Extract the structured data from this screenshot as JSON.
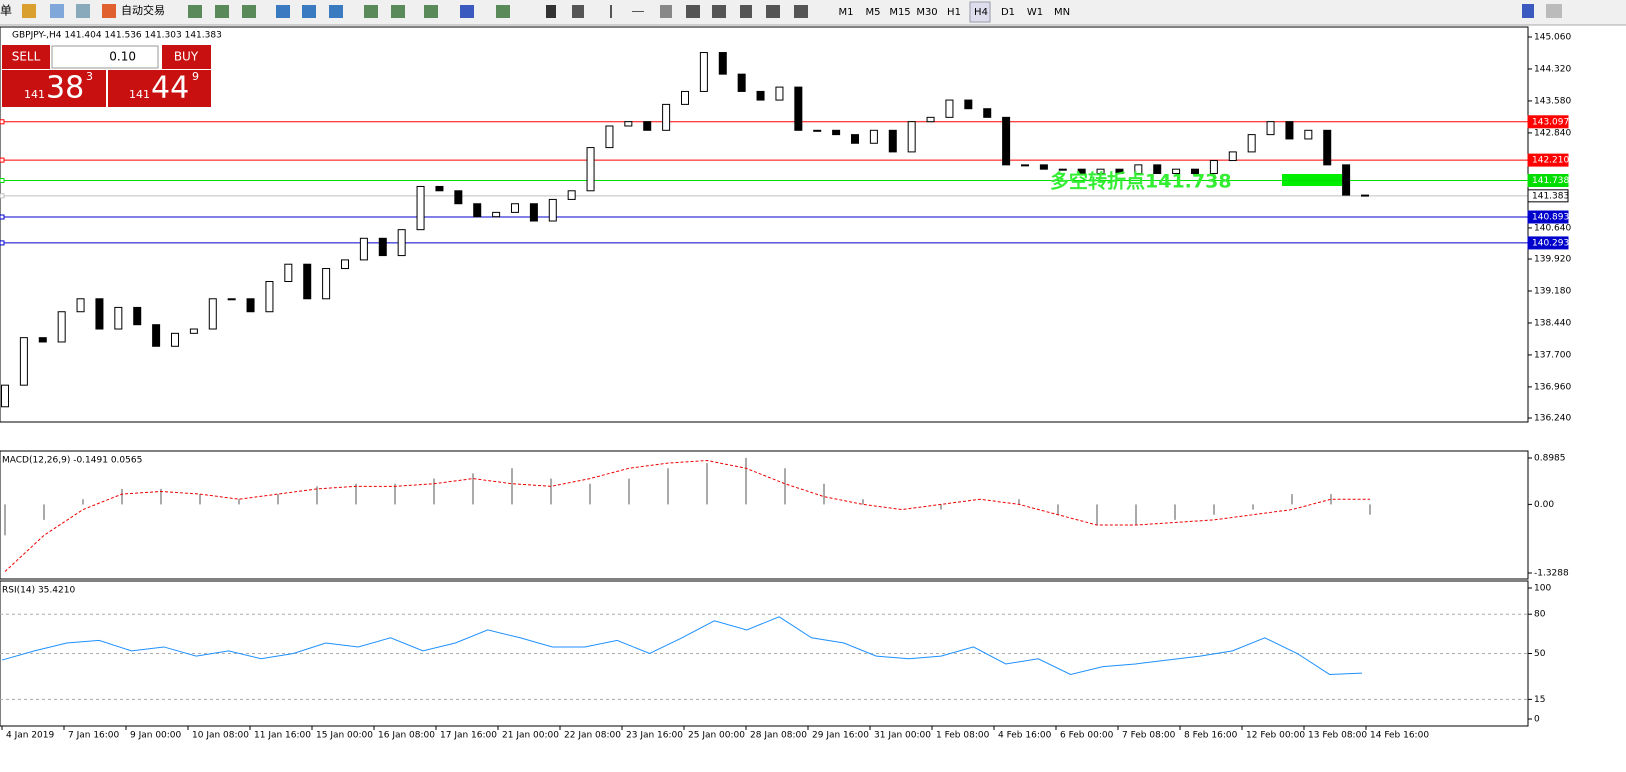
{
  "toolbar": {
    "left_label": "单",
    "auto_trade": "自动交易",
    "timeframes": [
      "M1",
      "M5",
      "M15",
      "M30",
      "H1",
      "H4",
      "D1",
      "W1",
      "MN"
    ]
  },
  "trade_panel": {
    "sell": "SELL",
    "buy": "BUY",
    "lots": "0.10",
    "sell_price": {
      "big": "141",
      "pips": "38",
      "frac": "3"
    },
    "buy_price": {
      "big": "141",
      "pips": "44",
      "frac": "9"
    }
  },
  "chart_data": [
    {
      "type": "candlestick",
      "title": "GBPJPY-,H4  141.404 141.536 141.303 141.383",
      "open": [
        136.5,
        137.0,
        138.1,
        138.0,
        138.7,
        139.0,
        138.3,
        138.8,
        138.4,
        137.9,
        138.2,
        138.3,
        139.0,
        139.0,
        138.7,
        139.4,
        139.8,
        139.0,
        139.7,
        139.9,
        140.4,
        140.0,
        140.6,
        141.6,
        141.5,
        141.2,
        140.9,
        141.0,
        141.2,
        140.8,
        141.3,
        141.5,
        142.5,
        143.0,
        143.1,
        142.9,
        143.5,
        143.8,
        144.7,
        144.2,
        143.8,
        143.6,
        143.9,
        142.9,
        142.9,
        142.8,
        142.6,
        142.9,
        142.4,
        143.1,
        143.2,
        143.6,
        143.4,
        143.2,
        142.1,
        142.1,
        142.0,
        142.0,
        141.9,
        142.0,
        141.9,
        142.1,
        141.9,
        142.0,
        141.9,
        142.2,
        142.4,
        142.8,
        143.1,
        142.7,
        142.9,
        142.1,
        141.4
      ],
      "close": [
        137.0,
        138.1,
        138.0,
        138.7,
        139.0,
        138.3,
        138.8,
        138.4,
        137.9,
        138.2,
        138.3,
        139.0,
        139.0,
        138.7,
        139.4,
        139.8,
        139.0,
        139.7,
        139.9,
        140.4,
        140.0,
        140.6,
        141.6,
        141.5,
        141.2,
        140.9,
        141.0,
        141.2,
        140.8,
        141.3,
        141.5,
        142.5,
        143.0,
        143.1,
        142.9,
        143.5,
        143.8,
        144.7,
        144.2,
        143.8,
        143.6,
        143.9,
        142.9,
        142.9,
        142.8,
        142.6,
        142.9,
        142.4,
        143.1,
        143.2,
        143.6,
        143.4,
        143.2,
        142.1,
        142.1,
        142.0,
        142.0,
        141.9,
        142.0,
        141.9,
        142.1,
        141.9,
        142.0,
        141.9,
        142.2,
        142.4,
        142.8,
        143.1,
        142.7,
        142.9,
        142.1,
        141.4,
        141.383
      ],
      "ylim": [
        136.24,
        145.06
      ],
      "yticks": [
        {
          "value": 145.06,
          "label": "145.060"
        },
        {
          "value": 144.32,
          "label": "144.320"
        },
        {
          "value": 143.58,
          "label": "143.580"
        },
        {
          "value": 142.84,
          "label": "142.840"
        },
        {
          "value": 140.64,
          "label": "140.640"
        },
        {
          "value": 139.92,
          "label": "139.920"
        },
        {
          "value": 139.18,
          "label": "139.180"
        },
        {
          "value": 138.44,
          "label": "138.440"
        },
        {
          "value": 137.7,
          "label": "137.700"
        },
        {
          "value": 136.96,
          "label": "136.960"
        },
        {
          "value": 136.24,
          "label": "136.240"
        }
      ],
      "levels": [
        {
          "value": 143.097,
          "label": "143.097",
          "color": "#ff0000"
        },
        {
          "value": 142.21,
          "label": "142.210",
          "color": "#ff0000"
        },
        {
          "value": 141.738,
          "label": "141.738",
          "color": "#00dd00"
        },
        {
          "value": 141.383,
          "label": "141.383",
          "color": "#c0c0c0"
        },
        {
          "value": 140.893,
          "label": "140.893",
          "color": "#0000cc"
        },
        {
          "value": 140.293,
          "label": "140.293",
          "color": "#0000cc"
        }
      ],
      "annotation": "多空转折点141.738"
    },
    {
      "type": "macd",
      "title": "MACD(12,26,9) -0.1491 0.0565",
      "values": [
        -0.6,
        -0.3,
        0.1,
        0.3,
        0.3,
        0.2,
        0.1,
        0.2,
        0.35,
        0.4,
        0.4,
        0.5,
        0.6,
        0.7,
        0.5,
        0.4,
        0.5,
        0.7,
        0.8,
        0.9,
        0.7,
        0.4,
        0.1,
        0.0,
        -0.1,
        0.0,
        0.1,
        -0.2,
        -0.4,
        -0.4,
        -0.3,
        -0.2,
        -0.1,
        0.2,
        0.2,
        -0.2
      ],
      "signal": [
        -1.3,
        -0.6,
        -0.1,
        0.2,
        0.25,
        0.2,
        0.1,
        0.2,
        0.3,
        0.35,
        0.35,
        0.4,
        0.5,
        0.4,
        0.35,
        0.5,
        0.7,
        0.8,
        0.85,
        0.7,
        0.4,
        0.15,
        0.0,
        -0.1,
        0.0,
        0.1,
        0.0,
        -0.2,
        -0.4,
        -0.4,
        -0.35,
        -0.3,
        -0.2,
        -0.1,
        0.1,
        0.1
      ],
      "ylim": [
        -1.3288,
        0.8985
      ],
      "yticks": [
        0.8985,
        {
          "value": 0,
          "label": "0.00"
        },
        -1.3288
      ]
    },
    {
      "type": "rsi",
      "title": "RSI(14) 35.4210",
      "values": [
        45,
        52,
        58,
        60,
        52,
        55,
        48,
        52,
        46,
        50,
        58,
        55,
        62,
        52,
        58,
        68,
        62,
        55,
        55,
        60,
        50,
        62,
        75,
        68,
        78,
        62,
        58,
        48,
        46,
        48,
        55,
        42,
        46,
        34,
        40,
        42,
        45,
        48,
        52,
        62,
        50,
        34,
        35
      ],
      "ylim": [
        0,
        100
      ],
      "yticks": [
        100,
        80,
        50,
        15,
        0
      ]
    }
  ],
  "time_axis": [
    "4 Jan 2019",
    "7 Jan 16:00",
    "9 Jan 00:00",
    "10 Jan 08:00",
    "11 Jan 16:00",
    "15 Jan 00:00",
    "16 Jan 08:00",
    "17 Jan 16:00",
    "21 Jan 00:00",
    "22 Jan 08:00",
    "23 Jan 16:00",
    "25 Jan 00:00",
    "28 Jan 08:00",
    "29 Jan 16:00",
    "31 Jan 00:00",
    "1 Feb 08:00",
    "4 Feb 16:00",
    "6 Feb 00:00",
    "7 Feb 08:00",
    "8 Feb 16:00",
    "12 Feb 00:00",
    "13 Feb 08:00",
    "14 Feb 16:00"
  ]
}
